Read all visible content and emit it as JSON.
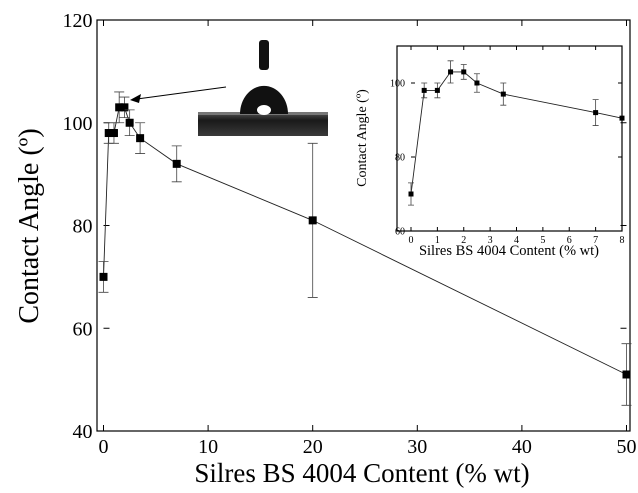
{
  "chart_data": [
    {
      "type": "scatter",
      "xlabel": "Silres BS 4004 Content (% wt)",
      "ylabel": "Contact Angle (º)",
      "xlim": [
        0,
        50
      ],
      "ylim": [
        40,
        120
      ],
      "xticks": [
        "0",
        "10",
        "20",
        "30",
        "40",
        "50"
      ],
      "yticks": [
        "40",
        "60",
        "80",
        "100",
        "120"
      ],
      "grid": false,
      "series": [
        {
          "points": [
            {
              "x": 0,
              "y": 70,
              "err": 3
            },
            {
              "x": 0.5,
              "y": 98,
              "err": 2
            },
            {
              "x": 1,
              "y": 98,
              "err": 2
            },
            {
              "x": 1.5,
              "y": 103,
              "err": 3
            },
            {
              "x": 2,
              "y": 103,
              "err": 2
            },
            {
              "x": 2.5,
              "y": 100,
              "err": 2.5
            },
            {
              "x": 3.5,
              "y": 97,
              "err": 3
            },
            {
              "x": 7,
              "y": 92,
              "err": 3.5
            },
            {
              "x": 20,
              "y": 81,
              "err": 15
            },
            {
              "x": 50,
              "y": 51,
              "err": 6
            }
          ]
        }
      ]
    },
    {
      "type": "scatter",
      "xlabel": "Silres BS 4004 Content (% wt)",
      "ylabel": "Contact Angle (º)",
      "xlim": [
        0,
        8
      ],
      "ylim": [
        60,
        110
      ],
      "xticks": [
        "0",
        "1",
        "2",
        "3",
        "4",
        "5",
        "6",
        "7",
        "8"
      ],
      "yticks": [
        "60",
        "80",
        "100"
      ],
      "grid": false,
      "series": [
        {
          "points": [
            {
              "x": 0,
              "y": 70,
              "err": 3
            },
            {
              "x": 0.5,
              "y": 98,
              "err": 2
            },
            {
              "x": 1,
              "y": 98,
              "err": 2
            },
            {
              "x": 1.5,
              "y": 103,
              "err": 3
            },
            {
              "x": 2,
              "y": 103,
              "err": 2
            },
            {
              "x": 2.5,
              "y": 100,
              "err": 2.5
            },
            {
              "x": 3.5,
              "y": 97,
              "err": 3
            },
            {
              "x": 7,
              "y": 92,
              "err": 3.5
            },
            {
              "x": 8,
              "y": 90.5,
              "err": 0
            }
          ]
        }
      ]
    }
  ]
}
